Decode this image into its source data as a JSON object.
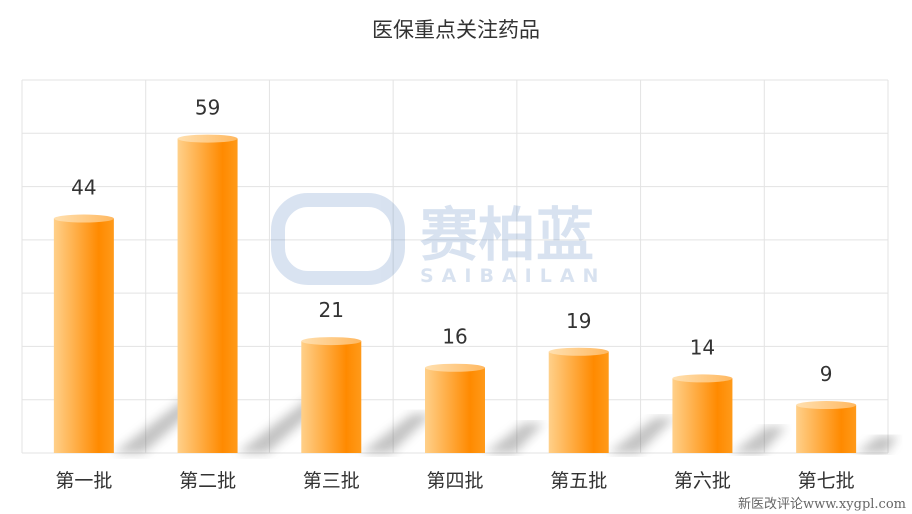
{
  "chart_data": {
    "type": "bar",
    "title": "医保重点关注药品",
    "categories": [
      "第一批",
      "第二批",
      "第三批",
      "第四批",
      "第五批",
      "第六批",
      "第七批"
    ],
    "values": [
      44,
      59,
      21,
      16,
      19,
      14,
      9
    ],
    "ylim": [
      0,
      70
    ],
    "grid": true,
    "bar_style": "3d-cylinder",
    "colors": {
      "bar_light": "#ffd08a",
      "bar_dark": "#ff8a00",
      "grid": "#e3e3e3"
    }
  },
  "watermark": {
    "text": "赛柏蓝",
    "subtext": "SAIBAILAN"
  },
  "footer": "新医改评论www.xygpl.com"
}
